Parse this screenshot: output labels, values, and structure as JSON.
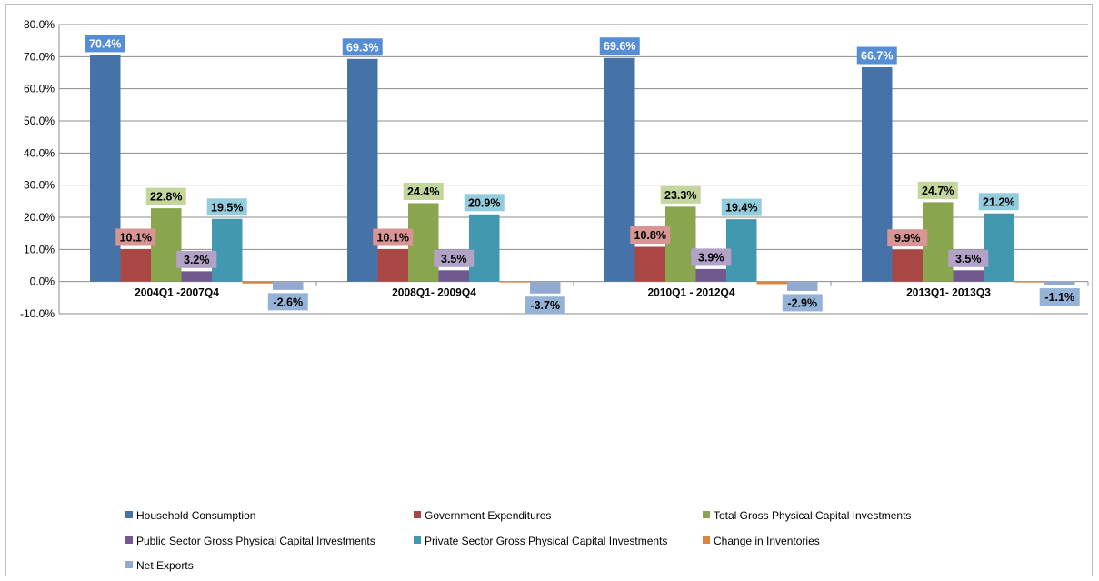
{
  "chart_data": {
    "type": "bar",
    "categories": [
      "2004Q1 -2007Q4",
      "2008Q1- 2009Q4",
      "2010Q1 - 2012Q4",
      "2013Q1- 2013Q3"
    ],
    "series": [
      {
        "name": "Household Consumption",
        "values": [
          70.4,
          69.3,
          69.6,
          66.7
        ],
        "labels": [
          "70.4%",
          "69.3%",
          "69.6%",
          "66.7%"
        ],
        "color": "#4572A7",
        "label_bg": "#558ED5"
      },
      {
        "name": "Government Expenditures",
        "values": [
          10.1,
          10.1,
          10.8,
          9.9
        ],
        "labels": [
          "10.1%",
          "10.1%",
          "10.8%",
          "9.9%"
        ],
        "color": "#AA4643",
        "label_bg": "#D99594"
      },
      {
        "name": "Total Gross Physical Capital Investments",
        "values": [
          22.8,
          24.4,
          23.3,
          24.7
        ],
        "labels": [
          "22.8%",
          "24.4%",
          "23.3%",
          "24.7%"
        ],
        "color": "#89A54E",
        "label_bg": "#C3D69B"
      },
      {
        "name": "Public Sector Gross Physical Capital Investments",
        "values": [
          3.2,
          3.5,
          3.9,
          3.5
        ],
        "labels": [
          "3.2%",
          "3.5%",
          "3.9%",
          "3.5%"
        ],
        "color": "#71588F",
        "label_bg": "#B3A2C7"
      },
      {
        "name": "Private Sector Gross Physical Capital Investments",
        "values": [
          19.5,
          20.9,
          19.4,
          21.2
        ],
        "labels": [
          "19.5%",
          "20.9%",
          "19.4%",
          "21.2%"
        ],
        "color": "#4198AF",
        "label_bg": "#93CDDD"
      },
      {
        "name": "Change in Inventories",
        "values": [
          -0.6,
          -0.2,
          -0.8,
          -0.2
        ],
        "labels": null,
        "color": "#DB843D",
        "label_bg": null
      },
      {
        "name": "Net Exports",
        "values": [
          -2.6,
          -3.7,
          -2.9,
          -1.1
        ],
        "labels": [
          "-2.6%",
          "-3.7%",
          "-2.9%",
          "-1.1%"
        ],
        "color": "#93A9CF",
        "label_bg": "#95B3D7"
      }
    ],
    "ylim": [
      -10,
      80
    ],
    "yticks": [
      -10,
      0,
      10,
      20,
      30,
      40,
      50,
      60,
      70,
      80
    ],
    "ytick_labels": [
      "-10.0%",
      "0.0%",
      "10.0%",
      "20.0%",
      "30.0%",
      "40.0%",
      "50.0%",
      "60.0%",
      "70.0%",
      "80.0%"
    ],
    "grid": true,
    "legend_position": "bottom",
    "title": "",
    "xlabel": "",
    "ylabel": ""
  }
}
